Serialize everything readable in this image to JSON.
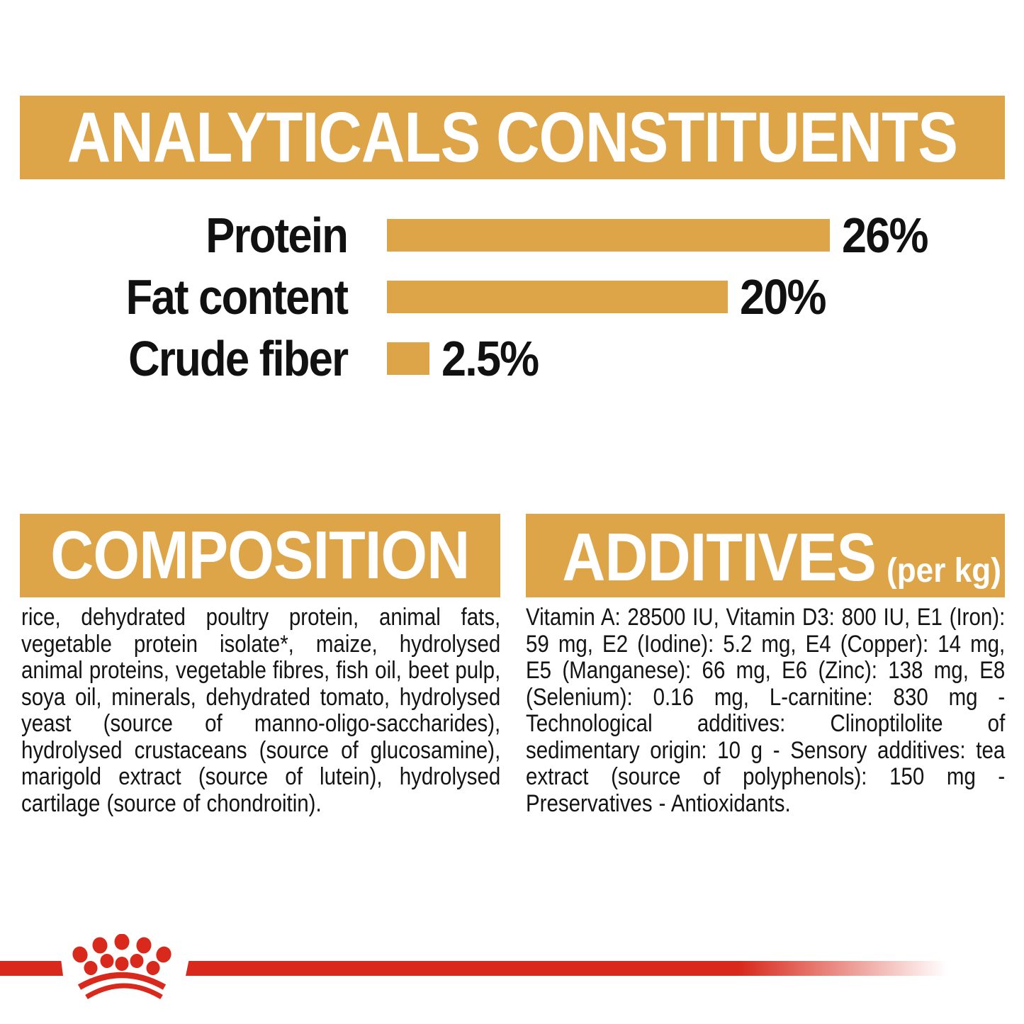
{
  "colors": {
    "gold": "#DDA547",
    "red": "#D8291C",
    "text": "#141414",
    "white": "#FFFFFF"
  },
  "header": {
    "title": "ANALYTICALS CONSTITUENTS"
  },
  "chart_data": {
    "type": "bar",
    "orientation": "horizontal",
    "categories": [
      "Protein",
      "Fat content",
      "Crude fiber"
    ],
    "values": [
      26,
      20,
      2.5
    ],
    "value_labels": [
      "26%",
      "20%",
      "2.5%"
    ],
    "unit": "%",
    "xlim": [
      0,
      26
    ],
    "bar_color": "#DDA547",
    "grid": false,
    "legend": false
  },
  "composition": {
    "title": "COMPOSITION",
    "body": "rice, dehydrated poultry protein, animal fats, vegetable protein isolate*, maize, hydrolysed animal proteins, vegetable fibres, fish oil, beet pulp, soya oil, minerals, dehydrated tomato, hydrolysed yeast (source of manno-oligo-saccharides), hydrolysed crustaceans (source of glucosamine), marigold extract (source of lutein), hydrolysed cartilage (source of chondroitin)."
  },
  "additives": {
    "title": "ADDITIVES",
    "title_suffix": "(per kg)",
    "body": "Vitamin A: 28500 IU, Vitamin D3: 800 IU, E1 (Iron): 59 mg, E2 (Iodine): 5.2 mg, E4 (Copper): 14 mg, E5 (Manganese): 66 mg, E6 (Zinc): 138 mg, E8 (Selenium): 0.16 mg, L-carnitine: 830 mg - Technological additives: Clinoptilolite of sedimentary origin: 10 g - Sensory additives: tea extract (source of polyphenols): 150 mg - Preservatives - Antioxidants."
  },
  "footer": {
    "logo": "royal-canin-crown"
  }
}
